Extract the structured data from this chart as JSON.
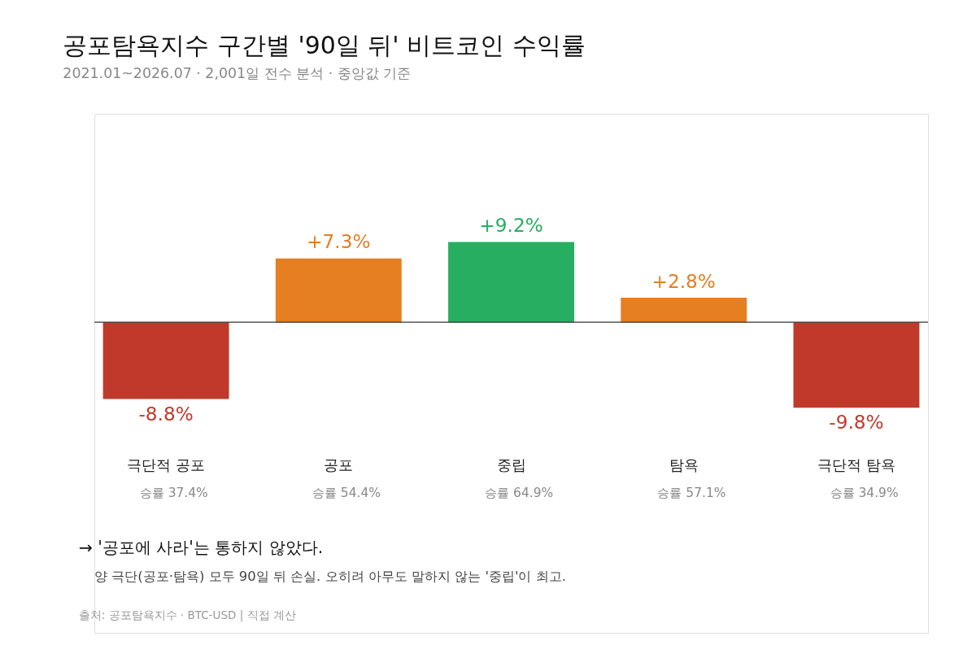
{
  "chart_data": {
    "type": "bar",
    "title": "공포탐욕지수 구간별 '90일 뒤' 비트코인 수익률",
    "subtitle": "2021.01~2026.07 · 2,001일 전수 분석 · 중앙값 기준",
    "categories": [
      "극단적 공포",
      "공포",
      "중립",
      "탐욕",
      "극단적 탐욕"
    ],
    "values": [
      -8.8,
      7.3,
      9.2,
      2.8,
      -9.8
    ],
    "colors": [
      "#c0392b",
      "#e67e22",
      "#27ae60",
      "#e67e22",
      "#c0392b"
    ],
    "value_labels": [
      "-8.8%",
      "+7.3%",
      "+9.2%",
      "+2.8%",
      "-9.8%"
    ],
    "annotations": [
      "승률 37.4%",
      "승률 54.4%",
      "승률 64.9%",
      "승률 57.1%",
      "승률 34.9%",
      "→ '공포에 사라'는 통하지 않았다.",
      "양 극단(공포·탐욕) 모두 90일 뒤 손실. 오히려 아무도 말하지 않는 '중립'이 최고.",
      "출처: 공포탐욕지수 · BTC-USD | 직접 계산"
    ]
  }
}
